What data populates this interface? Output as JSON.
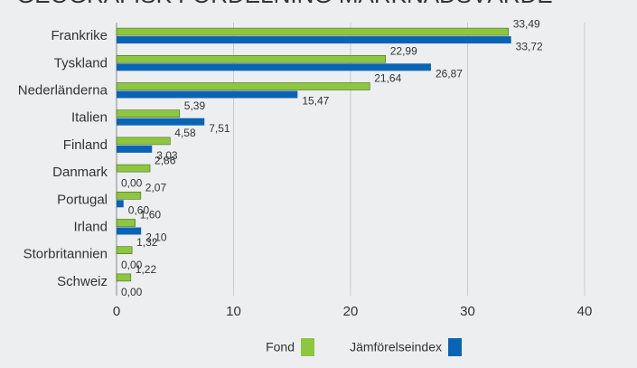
{
  "chart_data": {
    "type": "bar",
    "orientation": "horizontal",
    "title": "GEOGRAFISK FÖRDELNING MARKNADSVÄRDE",
    "categories": [
      "Frankrike",
      "Tyskland",
      "Nederländerna",
      "Italien",
      "Finland",
      "Danmark",
      "Portugal",
      "Irland",
      "Storbritannien",
      "Schweiz"
    ],
    "series": [
      {
        "name": "Fond",
        "color": "#8dc63f",
        "values": [
          33.49,
          22.99,
          21.64,
          5.39,
          4.58,
          2.86,
          2.07,
          1.6,
          1.32,
          1.22
        ],
        "value_labels": [
          "33,49",
          "22,99",
          "21,64",
          "5,39",
          "4,58",
          "2,86",
          "2,07",
          "1,60",
          "1,32",
          "1,22"
        ]
      },
      {
        "name": "Jämförelseindex",
        "color": "#0a64b4",
        "values": [
          33.72,
          26.87,
          15.47,
          7.51,
          3.03,
          0.0,
          0.6,
          2.1,
          0.0,
          0.0
        ],
        "value_labels": [
          "33,72",
          "26,87",
          "15,47",
          "7,51",
          "3,03",
          "0,00",
          "0,60",
          "2,10",
          "0,00",
          "0,00"
        ]
      }
    ],
    "xlim": [
      0,
      40
    ],
    "xticks": [
      0,
      10,
      20,
      30,
      40
    ],
    "grid": true
  }
}
